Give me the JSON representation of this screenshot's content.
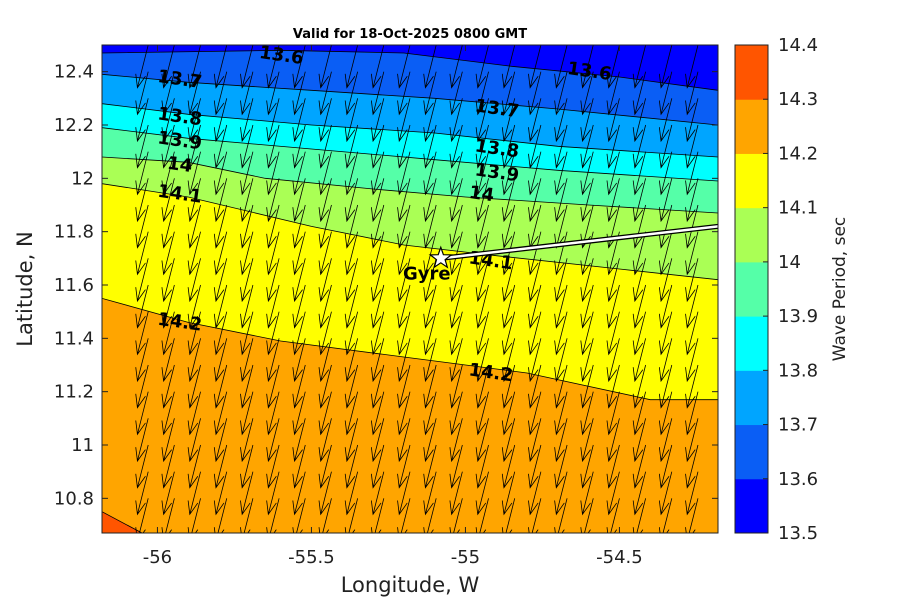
{
  "chart_data": {
    "type": "contour",
    "title": "Valid for 18-Oct-2025 0800 GMT",
    "xlabel": "Longitude, W",
    "ylabel": "Latitude, N",
    "colorbar_label": "Wave Period, sec",
    "xlim": [
      -56.18,
      -54.18
    ],
    "ylim": [
      10.67,
      12.5
    ],
    "xticks": [
      -56,
      -55.5,
      -55,
      -54.5
    ],
    "xtick_labels": [
      "-56",
      "-55.5",
      "-55",
      "-54.5"
    ],
    "yticks": [
      10.8,
      11,
      11.2,
      11.4,
      11.6,
      11.8,
      12,
      12.2,
      12.4
    ],
    "ytick_labels": [
      "10.8",
      "11",
      "11.2",
      "11.4",
      "11.6",
      "11.8",
      "12",
      "12.2",
      "12.4"
    ],
    "levels": [
      13.5,
      13.6,
      13.7,
      13.8,
      13.9,
      14.0,
      14.1,
      14.2,
      14.3,
      14.4
    ],
    "colorbar_ticks": [
      "13.5",
      "13.6",
      "13.7",
      "13.8",
      "13.9",
      "14",
      "14.1",
      "14.2",
      "14.3",
      "14.4"
    ],
    "colors": [
      "#0000ff",
      "#0a5ef5",
      "#00a5ff",
      "#00ffff",
      "#55ffa8",
      "#aaff55",
      "#ffff00",
      "#ffa500",
      "#ff5500"
    ],
    "contours": [
      {
        "level": 13.6,
        "label": "13.6",
        "points": [
          [
            -56.18,
            12.47
          ],
          [
            -55.6,
            12.48
          ],
          [
            -55.2,
            12.47
          ],
          [
            -54.85,
            12.42
          ],
          [
            -54.5,
            12.38
          ],
          [
            -54.18,
            12.33
          ]
        ]
      },
      {
        "level": 13.7,
        "label": "13.7",
        "points": [
          [
            -56.18,
            12.39
          ],
          [
            -55.9,
            12.36
          ],
          [
            -55.5,
            12.33
          ],
          [
            -55.1,
            12.3
          ],
          [
            -54.7,
            12.26
          ],
          [
            -54.18,
            12.2
          ]
        ]
      },
      {
        "level": 13.8,
        "label": "13.8",
        "points": [
          [
            -56.18,
            12.28
          ],
          [
            -55.9,
            12.24
          ],
          [
            -55.5,
            12.2
          ],
          [
            -55.1,
            12.17
          ],
          [
            -54.7,
            12.12
          ],
          [
            -54.18,
            12.08
          ]
        ]
      },
      {
        "level": 13.9,
        "label": "13.9",
        "points": [
          [
            -56.18,
            12.19
          ],
          [
            -55.9,
            12.15
          ],
          [
            -55.5,
            12.11
          ],
          [
            -55.1,
            12.07
          ],
          [
            -54.7,
            12.03
          ],
          [
            -54.18,
            11.99
          ]
        ]
      },
      {
        "level": 14.0,
        "label": "14",
        "points": [
          [
            -56.18,
            12.08
          ],
          [
            -55.9,
            12.06
          ],
          [
            -55.65,
            12.0
          ],
          [
            -55.3,
            11.96
          ],
          [
            -55.0,
            11.93
          ],
          [
            -54.6,
            11.9
          ],
          [
            -54.18,
            11.87
          ]
        ]
      },
      {
        "level": 14.1,
        "label": "14.1",
        "points": [
          [
            -56.18,
            11.98
          ],
          [
            -55.9,
            11.93
          ],
          [
            -55.5,
            11.82
          ],
          [
            -55.2,
            11.75
          ],
          [
            -54.9,
            11.71
          ],
          [
            -54.5,
            11.66
          ],
          [
            -54.18,
            11.62
          ]
        ]
      },
      {
        "level": 14.2,
        "label": "14.2",
        "points": [
          [
            -56.18,
            11.55
          ],
          [
            -55.9,
            11.46
          ],
          [
            -55.6,
            11.39
          ],
          [
            -55.2,
            11.33
          ],
          [
            -54.8,
            11.27
          ],
          [
            -54.4,
            11.17
          ],
          [
            -54.18,
            11.17
          ]
        ]
      },
      {
        "level": 14.3,
        "label": "",
        "points": [
          [
            -56.18,
            10.75
          ],
          [
            -56.05,
            10.67
          ]
        ]
      }
    ],
    "contour_labels": [
      {
        "text": "13.6",
        "x": -55.6,
        "y": 12.44
      },
      {
        "text": "13.6",
        "x": -54.6,
        "y": 12.38
      },
      {
        "text": "13.7",
        "x": -55.93,
        "y": 12.35
      },
      {
        "text": "13.7",
        "x": -54.9,
        "y": 12.24
      },
      {
        "text": "13.8",
        "x": -55.93,
        "y": 12.21
      },
      {
        "text": "13.8",
        "x": -54.9,
        "y": 12.09
      },
      {
        "text": "13.9",
        "x": -55.93,
        "y": 12.12
      },
      {
        "text": "13.9",
        "x": -54.9,
        "y": 12.0
      },
      {
        "text": "14",
        "x": -55.93,
        "y": 12.03
      },
      {
        "text": "14",
        "x": -54.95,
        "y": 11.92
      },
      {
        "text": "14.1",
        "x": -55.93,
        "y": 11.92
      },
      {
        "text": "14.1",
        "x": -54.92,
        "y": 11.67
      },
      {
        "text": "14.2",
        "x": -55.93,
        "y": 11.44
      },
      {
        "text": "14.2",
        "x": -54.92,
        "y": 11.25
      }
    ],
    "arrows": {
      "dx": -0.035,
      "dy": -0.16,
      "x_start": -56.03,
      "x_step": 0.085,
      "y_start": 10.76,
      "y_step": 0.1
    },
    "track": [
      [
        -55.08,
        11.7
      ],
      [
        -54.18,
        11.82
      ]
    ],
    "marker": {
      "label": "Gyre",
      "lon": -55.08,
      "lat": 11.7
    }
  }
}
